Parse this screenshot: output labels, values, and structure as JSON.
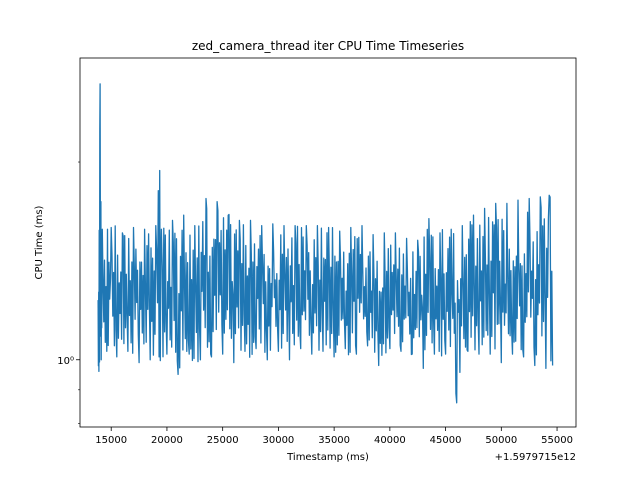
{
  "chart_data": {
    "type": "line",
    "title": "zed_camera_thread iter CPU Time Timeseries",
    "xlabel": "Timestamp (ms)",
    "ylabel": "CPU Time (ms)",
    "x_offset_label": "+1.5979715e12",
    "xlim": [
      12200,
      56700
    ],
    "ylim": [
      0.79,
      2.88
    ],
    "y_scale": "log",
    "grid": false,
    "x_ticks": [
      15000,
      20000,
      25000,
      30000,
      35000,
      40000,
      45000,
      50000,
      55000
    ],
    "x_tick_labels": [
      "15000",
      "20000",
      "25000",
      "30000",
      "35000",
      "40000",
      "45000",
      "50000",
      "55000"
    ],
    "y_ticks": [
      1.0
    ],
    "y_tick_labels": [
      "10⁰"
    ],
    "line_color": "#1f77b4",
    "series": [
      {
        "name": "",
        "x": [
          13800,
          13900,
          14000,
          14100,
          14200,
          14600,
          15000,
          15500,
          16000,
          16500,
          17000,
          17500,
          18000,
          18500,
          19000,
          19300,
          19500,
          20000,
          20500,
          21000,
          21500,
          22000,
          22500,
          23000,
          23500,
          24000,
          24500,
          25000,
          25500,
          26000,
          26500,
          27000,
          27500,
          28000,
          28500,
          29000,
          29500,
          30000,
          30500,
          31000,
          31500,
          32000,
          32500,
          33000,
          33500,
          34000,
          34500,
          35000,
          35500,
          36000,
          36500,
          37000,
          37500,
          38000,
          38500,
          39000,
          39500,
          40000,
          40500,
          41000,
          41500,
          42000,
          42500,
          43000,
          43500,
          44000,
          44500,
          45000,
          45500,
          46000,
          46500,
          47000,
          47500,
          48000,
          48500,
          49000,
          49500,
          50000,
          50500,
          51000,
          51500,
          52000,
          52500,
          53000,
          53500,
          54000,
          54300,
          54600
        ],
        "y_high": [
          1.23,
          1.59,
          2.63,
          1.61,
          1.58,
          1.59,
          1.59,
          1.61,
          1.56,
          1.62,
          1.59,
          1.62,
          1.58,
          1.56,
          1.6,
          2.1,
          1.58,
          1.6,
          1.63,
          1.58,
          1.66,
          1.63,
          1.6,
          1.75,
          1.76,
          1.72,
          1.74,
          1.7,
          1.66,
          1.72,
          1.63,
          1.6,
          1.63,
          1.62,
          1.6,
          1.59,
          1.61,
          1.6,
          1.6,
          1.61,
          1.6,
          1.62,
          1.6,
          1.57,
          1.6,
          1.62,
          1.59,
          1.6,
          1.57,
          1.56,
          1.59,
          1.58,
          1.6,
          1.56,
          1.55,
          1.58,
          1.56,
          1.52,
          1.56,
          1.5,
          1.53,
          1.55,
          1.52,
          1.55,
          1.64,
          1.6,
          1.56,
          1.62,
          1.58,
          1.65,
          1.6,
          1.63,
          1.66,
          1.6,
          1.7,
          1.67,
          1.73,
          1.71,
          1.73,
          1.72,
          1.75,
          1.74,
          1.76,
          1.71,
          1.77,
          1.76,
          1.78,
          1.78
        ],
        "y_low": [
          0.96,
          0.96,
          0.97,
          1.0,
          1.02,
          1.03,
          1.02,
          1.01,
          1.0,
          1.03,
          1.0,
          0.99,
          1.01,
          1.0,
          1.02,
          1.01,
          0.98,
          1.02,
          1.01,
          0.95,
          1.01,
          1.02,
          0.98,
          1.0,
          1.03,
          1.01,
          1.0,
          1.02,
          0.93,
          0.99,
          1.02,
          1.03,
          1.0,
          1.04,
          1.02,
          1.0,
          1.05,
          1.03,
          1.04,
          1.0,
          1.01,
          1.04,
          1.02,
          1.02,
          1.01,
          1.03,
          1.04,
          1.01,
          1.03,
          1.04,
          1.0,
          1.02,
          1.01,
          1.05,
          1.03,
          0.98,
          0.99,
          1.04,
          1.05,
          1.03,
          1.01,
          1.02,
          1.01,
          0.97,
          1.03,
          1.02,
          1.01,
          1.02,
          1.03,
          0.86,
          1.02,
          1.03,
          1.0,
          1.02,
          1.01,
          1.02,
          0.98,
          0.99,
          0.95,
          1.02,
          1.03,
          1.01,
          0.99,
          0.98,
          1.0,
          0.97,
          1.01,
          0.98
        ]
      }
    ]
  }
}
